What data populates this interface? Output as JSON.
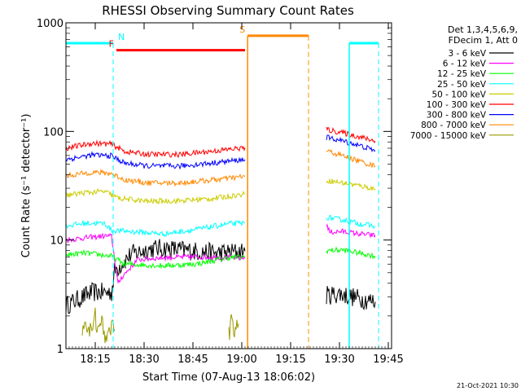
{
  "chart_data": {
    "type": "line",
    "title": "RHESSI Observing Summary Count Rates",
    "xlabel": "Start Time (07-Aug-13 18:06:02)",
    "ylabel": "Count Rate (s⁻¹ detector⁻¹)",
    "x_unit": "minutes after 18:06:02",
    "xlim": [
      0,
      100
    ],
    "ylim": [
      1,
      1000
    ],
    "y_scale": "log",
    "x_ticks": [
      {
        "label": "18:15",
        "value": 9
      },
      {
        "label": "18:30",
        "value": 24
      },
      {
        "label": "18:45",
        "value": 39
      },
      {
        "label": "19:00",
        "value": 54
      },
      {
        "label": "19:15",
        "value": 69
      },
      {
        "label": "19:30",
        "value": 84
      },
      {
        "label": "19:45",
        "value": 99
      }
    ],
    "y_ticks": [
      {
        "label": "1",
        "value": 1
      },
      {
        "label": "10",
        "value": 10
      },
      {
        "label": "100",
        "value": 100
      },
      {
        "label": "1000",
        "value": 1000
      }
    ],
    "legend_header": [
      "Det 1,3,4,5,6,9,",
      "FDecim 1, Att 0"
    ],
    "legend_position": "right",
    "series": [
      {
        "name": "3 - 6 keV",
        "color": "#000000",
        "segments": [
          [
            [
              0,
              2.5
            ],
            [
              8,
              3.3
            ],
            [
              14,
              3.3
            ],
            [
              15,
              5.2
            ],
            [
              20,
              7.4
            ],
            [
              26,
              8.3
            ],
            [
              30,
              8.4
            ],
            [
              38,
              8.0
            ],
            [
              46,
              7.6
            ],
            [
              50,
              7.7
            ],
            [
              55,
              7.9
            ]
          ],
          [
            [
              80,
              3.1
            ],
            [
              84,
              3.2
            ],
            [
              90,
              2.9
            ],
            [
              95,
              2.7
            ]
          ]
        ]
      },
      {
        "name": "6 - 12 keV",
        "color": "#ff00ff",
        "segments": [
          [
            [
              0,
              10.0
            ],
            [
              6,
              10.5
            ],
            [
              12,
              10.9
            ],
            [
              14,
              10.8
            ],
            [
              16,
              3.9
            ],
            [
              17,
              4.5
            ],
            [
              22,
              6.6
            ],
            [
              30,
              6.9
            ],
            [
              40,
              7.0
            ],
            [
              50,
              6.9
            ],
            [
              55,
              6.8
            ]
          ],
          [
            [
              80,
              14.0
            ],
            [
              81,
              11.8
            ],
            [
              85,
              12.0
            ],
            [
              90,
              11.4
            ],
            [
              95,
              11.0
            ]
          ]
        ]
      },
      {
        "name": "12 - 25 keV",
        "color": "#00ff00",
        "segments": [
          [
            [
              0,
              7.3
            ],
            [
              6,
              7.6
            ],
            [
              14,
              7.1
            ],
            [
              18,
              6.0
            ],
            [
              30,
              5.8
            ],
            [
              40,
              6.0
            ],
            [
              50,
              6.9
            ],
            [
              55,
              7.0
            ]
          ],
          [
            [
              80,
              8.0
            ],
            [
              85,
              8.1
            ],
            [
              90,
              7.6
            ],
            [
              95,
              7.1
            ]
          ]
        ]
      },
      {
        "name": "25 - 50 keV",
        "color": "#00ffff",
        "segments": [
          [
            [
              0,
              13.5
            ],
            [
              6,
              14.3
            ],
            [
              12,
              14.2
            ],
            [
              14,
              12.3
            ],
            [
              18,
              12.1
            ],
            [
              30,
              11.4
            ],
            [
              40,
              12.5
            ],
            [
              50,
              14.1
            ],
            [
              55,
              14.3
            ]
          ],
          [
            [
              80,
              16.2
            ],
            [
              85,
              15.3
            ],
            [
              90,
              14.2
            ],
            [
              95,
              13.4
            ]
          ]
        ]
      },
      {
        "name": "50 - 100 keV",
        "color": "#cccc00",
        "segments": [
          [
            [
              0,
              25.8
            ],
            [
              6,
              27.4
            ],
            [
              12,
              27.9
            ],
            [
              16,
              24.3
            ],
            [
              25,
              22.7
            ],
            [
              35,
              23.0
            ],
            [
              45,
              24.1
            ],
            [
              55,
              26.5
            ]
          ],
          [
            [
              80,
              35.4
            ],
            [
              85,
              33.6
            ],
            [
              90,
              31.7
            ],
            [
              95,
              29.5
            ]
          ]
        ]
      },
      {
        "name": "100 - 300 keV",
        "color": "#ff0000",
        "segments": [
          [
            [
              0,
              70.0
            ],
            [
              8,
              77.9
            ],
            [
              14,
              76.4
            ],
            [
              18,
              65.4
            ],
            [
              25,
              61.5
            ],
            [
              35,
              61.3
            ],
            [
              45,
              65.8
            ],
            [
              55,
              70.8
            ]
          ],
          [
            [
              80,
              104.0
            ],
            [
              85,
              97.0
            ],
            [
              90,
              89.4
            ],
            [
              95,
              81.4
            ]
          ]
        ]
      },
      {
        "name": "300 - 800 keV",
        "color": "#0000ff",
        "segments": [
          [
            [
              0,
              55.1
            ],
            [
              8,
              60.7
            ],
            [
              14,
              59.6
            ],
            [
              18,
              51.0
            ],
            [
              25,
              48.0
            ],
            [
              35,
              47.9
            ],
            [
              45,
              51.2
            ],
            [
              55,
              55.1
            ]
          ],
          [
            [
              80,
              88.0
            ],
            [
              85,
              81.7
            ],
            [
              90,
              74.3
            ],
            [
              95,
              66.6
            ]
          ]
        ]
      },
      {
        "name": "800 - 7000 keV",
        "color": "#ff8800",
        "segments": [
          [
            [
              0,
              39.0
            ],
            [
              8,
              42.1
            ],
            [
              14,
              41.0
            ],
            [
              18,
              35.8
            ],
            [
              25,
              33.6
            ],
            [
              35,
              33.5
            ],
            [
              45,
              35.7
            ],
            [
              55,
              38.5
            ]
          ],
          [
            [
              80,
              66.2
            ],
            [
              85,
              59.6
            ],
            [
              90,
              53.4
            ],
            [
              95,
              47.8
            ]
          ]
        ]
      },
      {
        "name": "7000 - 15000 keV",
        "color": "#999900",
        "segments": [
          [
            [
              5,
              1.6
            ],
            [
              6,
              1.9
            ],
            [
              7,
              1.3
            ],
            [
              8,
              1.7
            ],
            [
              9,
              2.0
            ],
            [
              10,
              1.4
            ],
            [
              11,
              1.8
            ],
            [
              12,
              1.2
            ],
            [
              13,
              1.6
            ],
            [
              15,
              1.5
            ]
          ],
          [
            [
              50,
              1.3
            ],
            [
              51,
              1.9
            ],
            [
              52,
              1.4
            ],
            [
              53,
              1.7
            ]
          ]
        ]
      }
    ],
    "annotations": [
      {
        "label": "N",
        "color": "#00ffff",
        "x": 14.5,
        "y_value": 650,
        "bars": [
          [
            0,
            14.5
          ],
          [
            87,
            96
          ]
        ],
        "dashed_x": [
          14.5,
          96
        ],
        "solid_x": [
          87
        ]
      },
      {
        "label": "F",
        "color": "#ff0000",
        "x": 15.5,
        "y_value": 560,
        "bars": [
          [
            15.5,
            55
          ]
        ]
      },
      {
        "label": "S",
        "color": "#ff8800",
        "x": 55.8,
        "y_value": 760,
        "bars": [
          [
            55.8,
            74.5
          ]
        ],
        "solid_x": [
          55.8
        ],
        "dashed_x": [
          74.5
        ]
      }
    ]
  },
  "footer": {
    "timestamp": "21-Oct-2021 10:30"
  }
}
